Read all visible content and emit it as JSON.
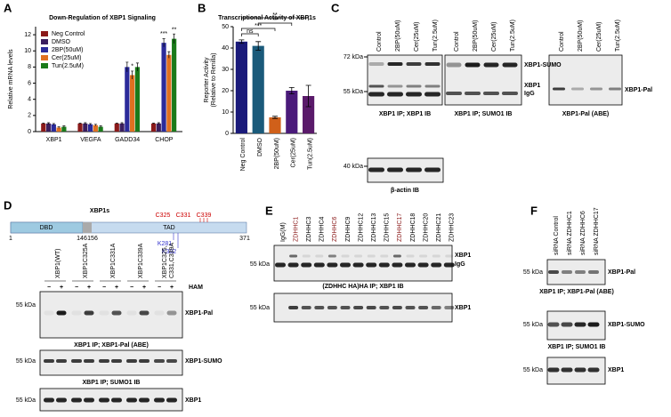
{
  "chart_data": [
    {
      "type": "bar",
      "panel": "A",
      "title": "Down-Regulation of XBP1 Signaling",
      "ylabel": "Relative mRNA levels",
      "categories": [
        "XBP1",
        "VEGFA",
        "GADD34",
        "CHOP"
      ],
      "series": [
        {
          "name": "Neg Control",
          "color": "#8b1a1a",
          "values": [
            1,
            1,
            1,
            1
          ],
          "errors": [
            0.05,
            0.05,
            0.05,
            0.05
          ]
        },
        {
          "name": "DMSO",
          "color": "#3b1e5e",
          "values": [
            1,
            1,
            1,
            1
          ],
          "errors": [
            0.1,
            0.1,
            0.1,
            0.1
          ]
        },
        {
          "name": "2BP(50uM)",
          "color": "#2b2b9a",
          "values": [
            0.9,
            0.9,
            8,
            11
          ],
          "errors": [
            0.1,
            0.1,
            0.6,
            0.5
          ]
        },
        {
          "name": "Cer(25uM)",
          "color": "#e07020",
          "values": [
            0.5,
            0.8,
            7,
            9.5
          ],
          "errors": [
            0.1,
            0.1,
            0.5,
            0.4
          ]
        },
        {
          "name": "Tun(2.5uM)",
          "color": "#1a7a1a",
          "values": [
            0.6,
            0.6,
            8,
            11.5
          ],
          "errors": [
            0.1,
            0.1,
            0.5,
            0.6
          ]
        }
      ],
      "ylim": [
        0,
        13
      ],
      "yticks": [
        0,
        2,
        4,
        6,
        8,
        10,
        12
      ],
      "annotations": [
        "***",
        "**",
        "*"
      ]
    },
    {
      "type": "bar",
      "panel": "B",
      "title": "Transcriptional Activity of XBP1s",
      "ylabel": [
        "Reporter Activity",
        "(Relative to Renilla)"
      ],
      "categories": [
        "Neg Control",
        "DMSO",
        "2BP(50uM)",
        "Cer(25uM)",
        "Tun(2.5uM)"
      ],
      "values": [
        43,
        41,
        7.5,
        20,
        17.5
      ],
      "errors": [
        0.8,
        2,
        0.5,
        1.5,
        5
      ],
      "colors": [
        "#1a1a7a",
        "#1a5a7a",
        "#d0601a",
        "#4a1a7a",
        "#5a1a6a"
      ],
      "ylim": [
        0,
        50
      ],
      "yticks": [
        0,
        10,
        20,
        30,
        40,
        50
      ],
      "significance": [
        "ns",
        "***",
        "**",
        "**"
      ]
    }
  ],
  "blots": {
    "C": {
      "letter": "C",
      "lanes": [
        "Control",
        "2BP(50uM)",
        "Cer(25uM)",
        "Tun(2.5uM)"
      ],
      "markers": [
        "72 kDa",
        "55 kDa",
        "40 kDa"
      ],
      "band_labels": [
        "XBP1-SUMO",
        "XBP1",
        "IgG",
        "XBP1-Pal"
      ],
      "captions": [
        "XBP1 IP; XBP1 IB",
        "XBP1 IP; SUMO1 IB",
        "XBP1-Pal (ABE)",
        "β-actin IB"
      ]
    },
    "D": {
      "letter": "D",
      "protein": "XBP1s",
      "domains": [
        "DBD",
        "TAD"
      ],
      "positions": [
        "1",
        "146",
        "156",
        "371"
      ],
      "cysteines": [
        "C325",
        "C331",
        "C339"
      ],
      "lysines": [
        "K281",
        "K302"
      ],
      "lanes": [
        [
          "XBP1(WT)"
        ],
        [
          "XBP1C325A"
        ],
        [
          "XBP1C331A"
        ],
        [
          "XBP1C339A"
        ],
        [
          "XBP1C325,",
          "C331,C339A"
        ]
      ],
      "treatment": "HAM",
      "signs": [
        "−",
        "+"
      ],
      "marker": "55 kDa",
      "band_labels": [
        "XBP1-Pal",
        "XBP1-SUMO",
        "XBP1"
      ],
      "captions": [
        "XBP1 IP; XBP1-Pal (ABE)",
        "XBP1 IP; SUMO1 IB"
      ]
    },
    "E": {
      "letter": "E",
      "lanes": [
        "IgG(M)",
        "ZDHHC1",
        "ZDHHC3",
        "ZDHHC4",
        "ZDHHC6",
        "ZDHHC9",
        "ZDHHC12",
        "ZDHHC13",
        "ZDHHC15",
        "ZDHHC17",
        "ZDHHC18",
        "ZDHHC20",
        "ZDHHC21",
        "ZDHHC23"
      ],
      "marker": "55 kDa",
      "band_labels": [
        "XBP1",
        "IgG"
      ],
      "caption": "(ZDHHC HA)HA IP; XBP1 IB"
    },
    "F": {
      "letter": "F",
      "lanes": [
        "siRNA Control",
        "siRNA ZDHHC1",
        "siRNA ZDHHC6",
        "siRNA ZDHHC17"
      ],
      "marker": "55 kDa",
      "band_labels": [
        "XBP1-Pal",
        "XBP1-SUMO",
        "XBP1"
      ],
      "captions": [
        "XBP1 IP; XBP1-Pal (ABE)",
        "XBP1 IP; SUMO1 IB"
      ]
    }
  }
}
